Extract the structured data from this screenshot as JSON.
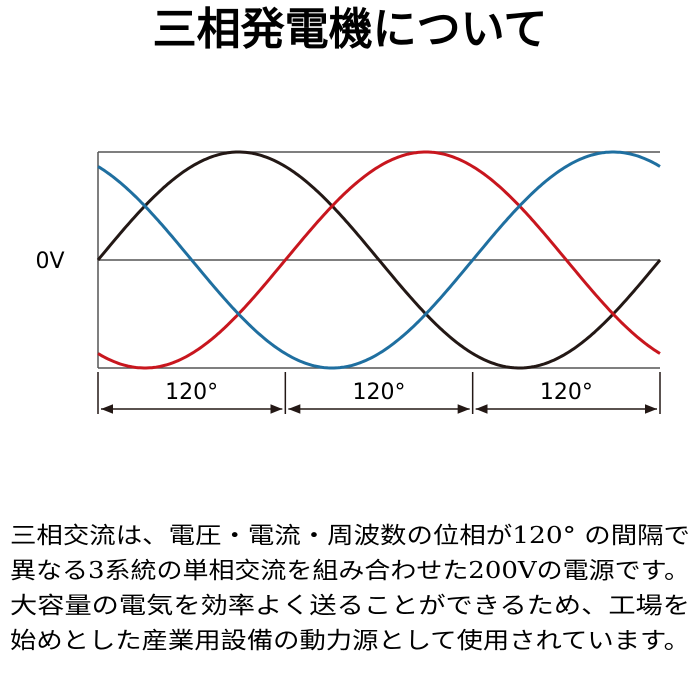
{
  "title": "三相発電機について",
  "diagram": {
    "zero_label": "0V",
    "intervals": [
      "120°",
      "120°",
      "120°"
    ]
  },
  "paragraph": {
    "lines": [
      "三相交流は、電圧・電流・周波数の位相が120° の間隔で",
      "異なる3系統の単相交流を組み合わせた200Vの電源です。",
      "大容量の電気を効率よく送ることができるため、工場を",
      "始めとした産業用設備の動力源として使用されています。"
    ]
  }
}
